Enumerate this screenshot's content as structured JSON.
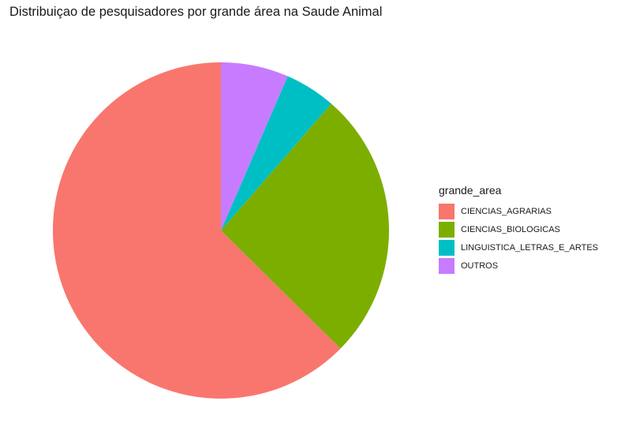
{
  "chart_data": {
    "type": "pie",
    "title": "Distribuiçao de pesquisadores por grande área na Saude Animal",
    "legend_title": "grande_area",
    "legend_position": "right",
    "start": "top",
    "direction": "counterclockwise",
    "categories": [
      "CIENCIAS_AGRARIAS",
      "CIENCIAS_BIOLOGICAS",
      "LINGUISTICA_LETRAS_E_ARTES",
      "OUTROS"
    ],
    "values": [
      62.6,
      26.0,
      4.9,
      6.5
    ],
    "colors": [
      "#F8766D",
      "#7CAE00",
      "#00BFC4",
      "#C77CFF"
    ]
  }
}
